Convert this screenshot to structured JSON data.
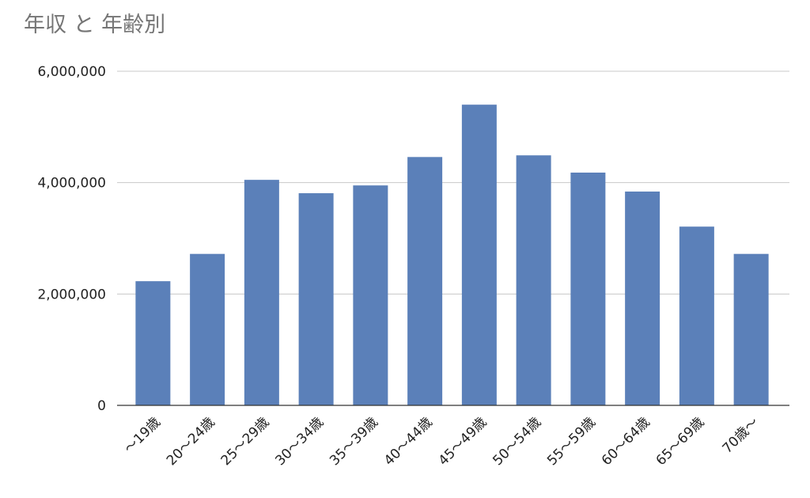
{
  "chart_data": {
    "type": "bar",
    "title": "年収 と 年齢別",
    "categories": [
      "〜19歳",
      "20〜24歳",
      "25〜29歳",
      "30〜34歳",
      "35〜39歳",
      "40〜44歳",
      "45〜49歳",
      "50〜54歳",
      "55〜59歳",
      "60〜64歳",
      "65〜69歳",
      "70歳〜"
    ],
    "values": [
      2230000,
      2720000,
      4050000,
      3810000,
      3950000,
      4460000,
      5400000,
      4490000,
      4180000,
      3840000,
      3210000,
      2720000
    ],
    "color": "#5b80b9",
    "ylim": [
      0,
      6000000
    ],
    "yticks": [
      0,
      {
        "value": 2000000,
        "label": "2,000,000"
      },
      {
        "value": 4000000,
        "label": "4,000,000"
      },
      {
        "value": 6000000,
        "label": "6,000,000"
      }
    ],
    "grid": true
  }
}
